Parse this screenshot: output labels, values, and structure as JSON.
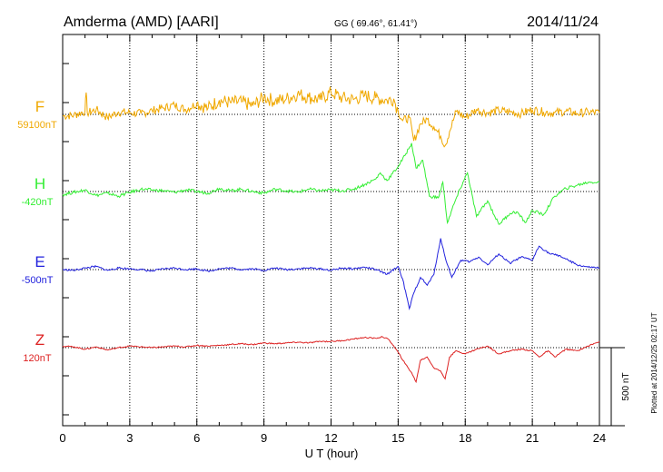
{
  "header": {
    "station": "Amderma (AMD)  [AARI]",
    "coords": "GG ( 69.46°,  61.41°)",
    "date": "2014/11/24"
  },
  "plotted_note": "Plotted at 2014/12/25 02:17 UT",
  "scale_label": "500 nT",
  "chart_data": {
    "type": "line",
    "xlabel": "U T (hour)",
    "xlim": [
      0,
      24
    ],
    "x_ticks": [
      "0",
      "3",
      "6",
      "9",
      "12",
      "15",
      "18",
      "21",
      "24"
    ],
    "grid": true,
    "series": [
      {
        "name": "F",
        "baseline_label": "59100nT",
        "color": "#f0a800",
        "x": [
          0,
          0.5,
          1,
          1.05,
          1.1,
          1.5,
          2,
          2.5,
          3,
          3.5,
          4,
          4.5,
          5,
          5.5,
          6,
          6.5,
          7,
          7.5,
          8,
          8.5,
          9,
          9.5,
          10,
          10.5,
          11,
          11.5,
          12,
          12.5,
          13,
          13.5,
          14,
          14.5,
          14.8,
          15,
          15.2,
          15.5,
          15.7,
          16,
          16.3,
          16.6,
          16.9,
          17.1,
          17.3,
          17.6,
          18,
          18.5,
          19,
          19.5,
          20,
          20.5,
          21,
          21.5,
          22,
          22.5,
          23,
          23.5,
          24
        ],
        "y": [
          -10,
          -5,
          20,
          140,
          10,
          30,
          -20,
          15,
          10,
          5,
          25,
          40,
          60,
          30,
          70,
          40,
          90,
          75,
          80,
          55,
          110,
          85,
          100,
          130,
          110,
          95,
          140,
          105,
          95,
          120,
          105,
          90,
          100,
          20,
          -40,
          -20,
          -170,
          -60,
          -30,
          -80,
          -140,
          -200,
          -110,
          20,
          -20,
          30,
          10,
          25,
          15,
          5,
          30,
          15,
          10,
          20,
          5,
          15,
          10
        ]
      },
      {
        "name": "H",
        "baseline_label": "-420nT",
        "color": "#33ee33",
        "x": [
          0,
          0.5,
          1,
          1.5,
          2,
          2.5,
          3,
          3.5,
          4,
          4.5,
          5,
          5.5,
          6,
          6.5,
          7,
          7.5,
          8,
          8.5,
          9,
          9.5,
          10,
          10.5,
          11,
          11.5,
          12,
          12.5,
          13,
          13.5,
          14,
          14.2,
          14.5,
          15,
          15.3,
          15.6,
          15.8,
          16.1,
          16.4,
          16.8,
          17,
          17.2,
          17.5,
          17.9,
          18.1,
          18.5,
          19,
          19.5,
          20,
          20.3,
          20.7,
          21,
          21.5,
          22,
          22.5,
          23,
          23.5,
          24
        ],
        "y": [
          -20,
          -5,
          10,
          -25,
          -10,
          -30,
          -5,
          15,
          10,
          5,
          -5,
          10,
          0,
          -10,
          20,
          5,
          15,
          0,
          -10,
          15,
          5,
          -5,
          15,
          5,
          10,
          5,
          15,
          45,
          80,
          120,
          70,
          160,
          230,
          310,
          150,
          200,
          -30,
          -40,
          60,
          -200,
          -80,
          60,
          120,
          -160,
          -60,
          -210,
          -140,
          -130,
          -200,
          -120,
          -150,
          -30,
          20,
          40,
          60,
          60
        ]
      },
      {
        "name": "E",
        "baseline_label": "-500nT",
        "color": "#2222dd",
        "x": [
          0,
          0.5,
          1,
          1.5,
          2,
          2.5,
          3,
          3.5,
          4,
          4.5,
          5,
          5.5,
          6,
          6.5,
          7,
          7.5,
          8,
          8.5,
          9,
          9.5,
          10,
          10.5,
          11,
          11.5,
          12,
          12.5,
          13,
          13.5,
          14,
          14.5,
          15,
          15.2,
          15.5,
          15.7,
          16,
          16.3,
          16.6,
          16.9,
          17.1,
          17.4,
          17.8,
          18.2,
          18.6,
          19,
          19.5,
          20,
          20.5,
          21,
          21.3,
          21.8,
          22.2,
          22.6,
          23,
          23.5,
          24
        ],
        "y": [
          0,
          -5,
          10,
          20,
          -5,
          10,
          5,
          0,
          -10,
          5,
          10,
          0,
          5,
          -10,
          5,
          10,
          0,
          5,
          -5,
          10,
          0,
          5,
          10,
          5,
          -5,
          10,
          5,
          15,
          0,
          -30,
          20,
          -60,
          -250,
          -150,
          -50,
          -100,
          -30,
          200,
          80,
          -50,
          60,
          50,
          80,
          30,
          100,
          40,
          80,
          60,
          150,
          100,
          90,
          60,
          30,
          15,
          10
        ]
      },
      {
        "name": "Z",
        "baseline_label": "120nT",
        "color": "#dd2222",
        "x": [
          0,
          0.5,
          1,
          1.5,
          2,
          2.5,
          3,
          3.5,
          4,
          4.5,
          5,
          5.5,
          6,
          6.5,
          7,
          7.5,
          8,
          8.5,
          9,
          9.5,
          10,
          10.5,
          11,
          11.5,
          12,
          12.5,
          13,
          13.5,
          14,
          14.3,
          14.6,
          15,
          15.3,
          15.6,
          15.8,
          16,
          16.3,
          16.6,
          16.9,
          17.1,
          17.3,
          17.6,
          18,
          18.5,
          19,
          19.5,
          20,
          20.5,
          21,
          21.3,
          21.7,
          22,
          22.5,
          23,
          23.5,
          24
        ],
        "y": [
          10,
          5,
          -10,
          5,
          -15,
          0,
          10,
          5,
          0,
          5,
          10,
          5,
          15,
          10,
          15,
          20,
          25,
          20,
          30,
          25,
          30,
          35,
          30,
          40,
          40,
          45,
          55,
          65,
          60,
          70,
          50,
          -30,
          -100,
          -160,
          -220,
          -80,
          -60,
          -130,
          -150,
          -200,
          -60,
          -20,
          -40,
          -10,
          10,
          -40,
          -20,
          -10,
          -20,
          -60,
          -20,
          -60,
          -10,
          -20,
          10,
          40
        ]
      }
    ]
  }
}
